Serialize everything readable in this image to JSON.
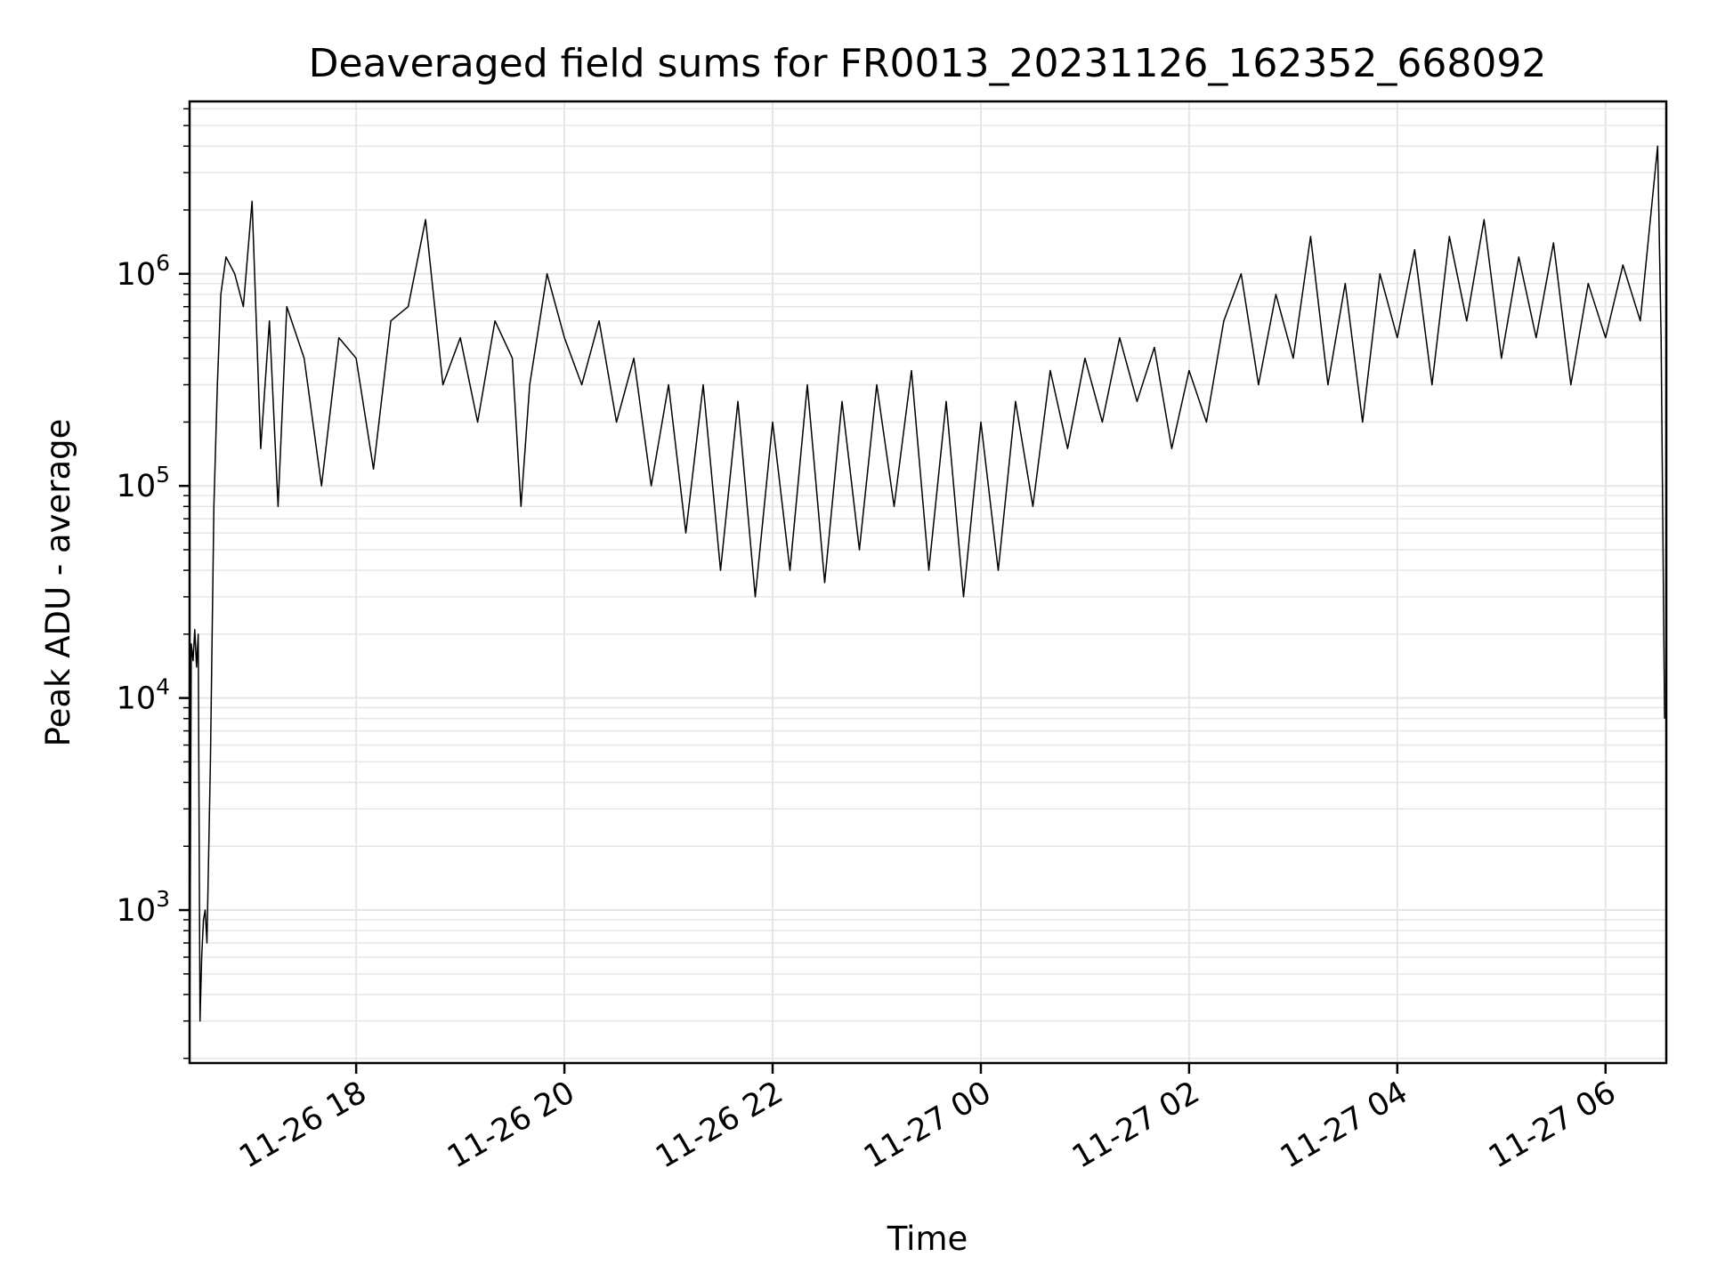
{
  "chart_data": {
    "type": "line",
    "title": "Deaveraged field sums for FR0013_20231126_162352_668092",
    "xlabel": "Time",
    "ylabel": "Peak ADU - average",
    "yscale": "log",
    "ylim": [
      190,
      6500000
    ],
    "xlim": [
      "11-26 16:24",
      "11-27 06:35"
    ],
    "grid": true,
    "line_color": "#000000",
    "grid_color": "#e6e6e6",
    "x_ticks": [
      {
        "value": "11-26 18:00",
        "label": "11-26 18"
      },
      {
        "value": "11-26 20:00",
        "label": "11-26 20"
      },
      {
        "value": "11-26 22:00",
        "label": "11-26 22"
      },
      {
        "value": "11-27 00:00",
        "label": "11-27 00"
      },
      {
        "value": "11-27 02:00",
        "label": "11-27 02"
      },
      {
        "value": "11-27 04:00",
        "label": "11-27 04"
      },
      {
        "value": "11-27 06:00",
        "label": "11-27 06"
      }
    ],
    "y_ticks": [
      {
        "value": 1000,
        "base": "10",
        "exp": "3"
      },
      {
        "value": 10000,
        "base": "10",
        "exp": "4"
      },
      {
        "value": 100000,
        "base": "10",
        "exp": "5"
      },
      {
        "value": 1000000,
        "base": "10",
        "exp": "6"
      }
    ],
    "series": [
      {
        "points": [
          [
            "11-26 16:24",
            200
          ],
          [
            "11-26 16:25",
            18000
          ],
          [
            "11-26 16:26",
            15000
          ],
          [
            "11-26 16:27",
            21000
          ],
          [
            "11-26 16:28",
            14000
          ],
          [
            "11-26 16:29",
            20000
          ],
          [
            "11-26 16:30",
            300
          ],
          [
            "11-26 16:31",
            600
          ],
          [
            "11-26 16:32",
            900
          ],
          [
            "11-26 16:33",
            1000
          ],
          [
            "11-26 16:34",
            700
          ],
          [
            "11-26 16:36",
            5000
          ],
          [
            "11-26 16:38",
            80000
          ],
          [
            "11-26 16:40",
            300000
          ],
          [
            "11-26 16:42",
            800000
          ],
          [
            "11-26 16:45",
            1200000
          ],
          [
            "11-26 16:50",
            1000000
          ],
          [
            "11-26 16:55",
            700000
          ],
          [
            "11-26 17:00",
            2200000
          ],
          [
            "11-26 17:05",
            150000
          ],
          [
            "11-26 17:10",
            600000
          ],
          [
            "11-26 17:15",
            80000
          ],
          [
            "11-26 17:20",
            700000
          ],
          [
            "11-26 17:30",
            400000
          ],
          [
            "11-26 17:40",
            100000
          ],
          [
            "11-26 17:50",
            500000
          ],
          [
            "11-26 18:00",
            400000
          ],
          [
            "11-26 18:10",
            120000
          ],
          [
            "11-26 18:20",
            600000
          ],
          [
            "11-26 18:30",
            700000
          ],
          [
            "11-26 18:40",
            1800000
          ],
          [
            "11-26 18:50",
            300000
          ],
          [
            "11-26 19:00",
            500000
          ],
          [
            "11-26 19:10",
            200000
          ],
          [
            "11-26 19:20",
            600000
          ],
          [
            "11-26 19:30",
            400000
          ],
          [
            "11-26 19:35",
            80000
          ],
          [
            "11-26 19:40",
            300000
          ],
          [
            "11-26 19:50",
            1000000
          ],
          [
            "11-26 20:00",
            500000
          ],
          [
            "11-26 20:10",
            300000
          ],
          [
            "11-26 20:20",
            600000
          ],
          [
            "11-26 20:30",
            200000
          ],
          [
            "11-26 20:40",
            400000
          ],
          [
            "11-26 20:50",
            100000
          ],
          [
            "11-26 21:00",
            300000
          ],
          [
            "11-26 21:10",
            60000
          ],
          [
            "11-26 21:20",
            300000
          ],
          [
            "11-26 21:30",
            40000
          ],
          [
            "11-26 21:40",
            250000
          ],
          [
            "11-26 21:50",
            30000
          ],
          [
            "11-26 22:00",
            200000
          ],
          [
            "11-26 22:10",
            40000
          ],
          [
            "11-26 22:20",
            300000
          ],
          [
            "11-26 22:30",
            35000
          ],
          [
            "11-26 22:40",
            250000
          ],
          [
            "11-26 22:50",
            50000
          ],
          [
            "11-26 23:00",
            300000
          ],
          [
            "11-26 23:10",
            80000
          ],
          [
            "11-26 23:20",
            350000
          ],
          [
            "11-26 23:30",
            40000
          ],
          [
            "11-26 23:40",
            250000
          ],
          [
            "11-26 23:50",
            30000
          ],
          [
            "11-27 00:00",
            200000
          ],
          [
            "11-27 00:10",
            40000
          ],
          [
            "11-27 00:20",
            250000
          ],
          [
            "11-27 00:30",
            80000
          ],
          [
            "11-27 00:40",
            350000
          ],
          [
            "11-27 00:50",
            150000
          ],
          [
            "11-27 01:00",
            400000
          ],
          [
            "11-27 01:10",
            200000
          ],
          [
            "11-27 01:20",
            500000
          ],
          [
            "11-27 01:30",
            250000
          ],
          [
            "11-27 01:40",
            450000
          ],
          [
            "11-27 01:50",
            150000
          ],
          [
            "11-27 02:00",
            350000
          ],
          [
            "11-27 02:10",
            200000
          ],
          [
            "11-27 02:20",
            600000
          ],
          [
            "11-27 02:30",
            1000000
          ],
          [
            "11-27 02:40",
            300000
          ],
          [
            "11-27 02:50",
            800000
          ],
          [
            "11-27 03:00",
            400000
          ],
          [
            "11-27 03:10",
            1500000
          ],
          [
            "11-27 03:20",
            300000
          ],
          [
            "11-27 03:30",
            900000
          ],
          [
            "11-27 03:40",
            200000
          ],
          [
            "11-27 03:50",
            1000000
          ],
          [
            "11-27 04:00",
            500000
          ],
          [
            "11-27 04:10",
            1300000
          ],
          [
            "11-27 04:20",
            300000
          ],
          [
            "11-27 04:30",
            1500000
          ],
          [
            "11-27 04:40",
            600000
          ],
          [
            "11-27 04:50",
            1800000
          ],
          [
            "11-27 05:00",
            400000
          ],
          [
            "11-27 05:10",
            1200000
          ],
          [
            "11-27 05:20",
            500000
          ],
          [
            "11-27 05:30",
            1400000
          ],
          [
            "11-27 05:40",
            300000
          ],
          [
            "11-27 05:50",
            900000
          ],
          [
            "11-27 06:00",
            500000
          ],
          [
            "11-27 06:10",
            1100000
          ],
          [
            "11-27 06:20",
            600000
          ],
          [
            "11-27 06:30",
            4000000
          ],
          [
            "11-27 06:32",
            500000
          ],
          [
            "11-27 06:34",
            8000
          ]
        ]
      }
    ]
  }
}
